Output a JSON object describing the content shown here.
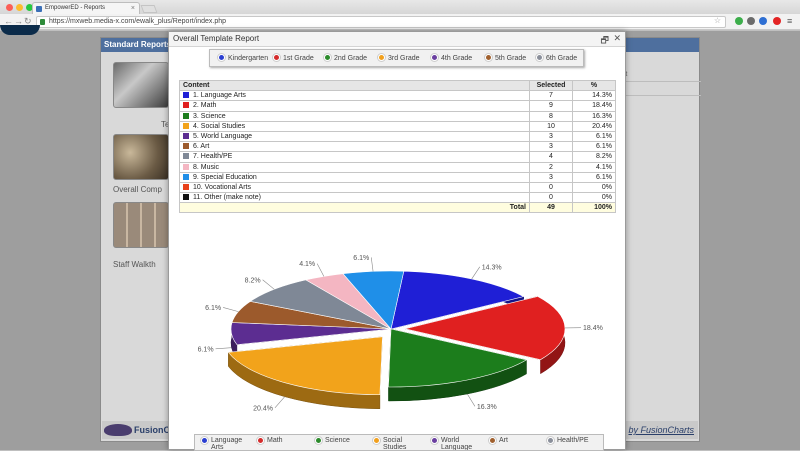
{
  "browser": {
    "tab_title": "EmpowerED - Reports",
    "url": "https://mxweb.media-x.com/ewalk_plus/Report/index.php"
  },
  "background": {
    "panel_title": "Standard Reports",
    "items": [
      {
        "label": "Te"
      },
      {
        "label": "Overall Comp"
      },
      {
        "label": "Staff Walkth"
      }
    ],
    "right_cells": [
      "rt",
      ""
    ],
    "footer_left": "FusionCh",
    "footer_right": "by FusionCharts"
  },
  "modal": {
    "title": "Overall Template Report",
    "restore_icon": "window-restore-icon",
    "close_icon": "close-icon"
  },
  "grade_legend": [
    {
      "label": "Kindergarten",
      "color": "#2b3fd1"
    },
    {
      "label": "1st Grade",
      "color": "#d42c2c"
    },
    {
      "label": "2nd Grade",
      "color": "#2b8a2b"
    },
    {
      "label": "3rd Grade",
      "color": "#f1a01e"
    },
    {
      "label": "4th Grade",
      "color": "#6a3fa0"
    },
    {
      "label": "5th Grade",
      "color": "#a0602e"
    },
    {
      "label": "6th Grade",
      "color": "#8a8f9a"
    }
  ],
  "table": {
    "headers": {
      "content": "Content",
      "selected": "Selected",
      "pct": "%"
    },
    "total": {
      "label": "Total",
      "selected": "49",
      "pct": "100%"
    }
  },
  "chart_data": {
    "type": "pie",
    "categories": [
      "1. Language Arts",
      "2. Math",
      "3. Science",
      "4. Social Studies",
      "5. World Language",
      "6. Art",
      "7. Health/PE",
      "8. Music",
      "9. Special Education",
      "10. Vocational Arts",
      "11. Other (make note)"
    ],
    "values": [
      7,
      9,
      8,
      10,
      3,
      3,
      4,
      2,
      3,
      0,
      0
    ],
    "labels": [
      "14.3%",
      "18.4%",
      "16.3%",
      "20.4%",
      "6.1%",
      "6.1%",
      "8.2%",
      "4.1%",
      "6.1%",
      "0%",
      "0%"
    ],
    "colors": [
      "#1f1fd6",
      "#e02020",
      "#1c7d1c",
      "#f2a31b",
      "#5c2d91",
      "#9c5a2c",
      "#7f8896",
      "#f4b6c2",
      "#1f8fe8",
      "#e8401a",
      "#111111"
    ]
  },
  "bottom_legend": [
    {
      "label": "Language Arts",
      "color": "#2b3fd1"
    },
    {
      "label": "Math",
      "color": "#d42c2c"
    },
    {
      "label": "Science",
      "color": "#2b8a2b"
    },
    {
      "label": "Social Studies",
      "color": "#f1a01e"
    },
    {
      "label": "World Language",
      "color": "#6a3fa0"
    },
    {
      "label": "Art",
      "color": "#a0602e"
    },
    {
      "label": "Health/PE",
      "color": "#8a8f9a"
    }
  ]
}
